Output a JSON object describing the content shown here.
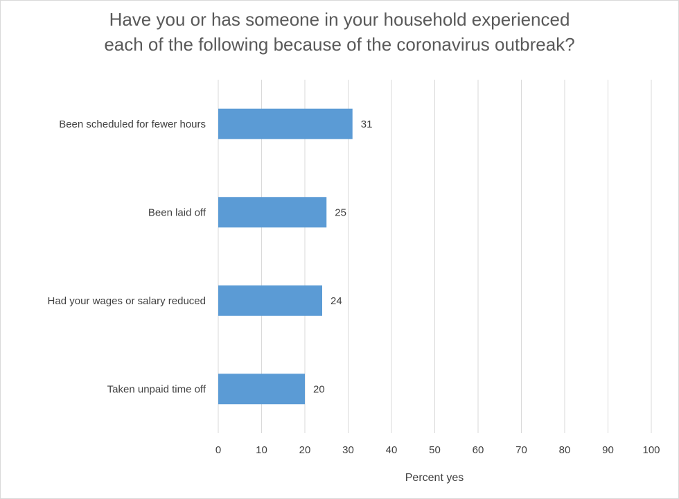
{
  "chart_data": {
    "type": "bar",
    "orientation": "horizontal",
    "title_lines": [
      "Have you or has someone in your household experienced",
      "each of the following because of the coronavirus outbreak?"
    ],
    "categories": [
      "Been scheduled for fewer hours",
      "Been laid off",
      "Had your wages or salary reduced",
      "Taken unpaid time off"
    ],
    "values": [
      31,
      25,
      24,
      20
    ],
    "xlabel": "Percent yes",
    "ylabel": "",
    "xlim": [
      0,
      100
    ],
    "xticks": [
      0,
      10,
      20,
      30,
      40,
      50,
      60,
      70,
      80,
      90,
      100
    ],
    "grid": "vertical",
    "legend": "none",
    "bar_color": "#5b9bd5",
    "data_labels": true
  },
  "colors": {
    "bar": "#5b9bd5",
    "text": "#404040",
    "title": "#595959",
    "grid": "#d9d9d9"
  }
}
